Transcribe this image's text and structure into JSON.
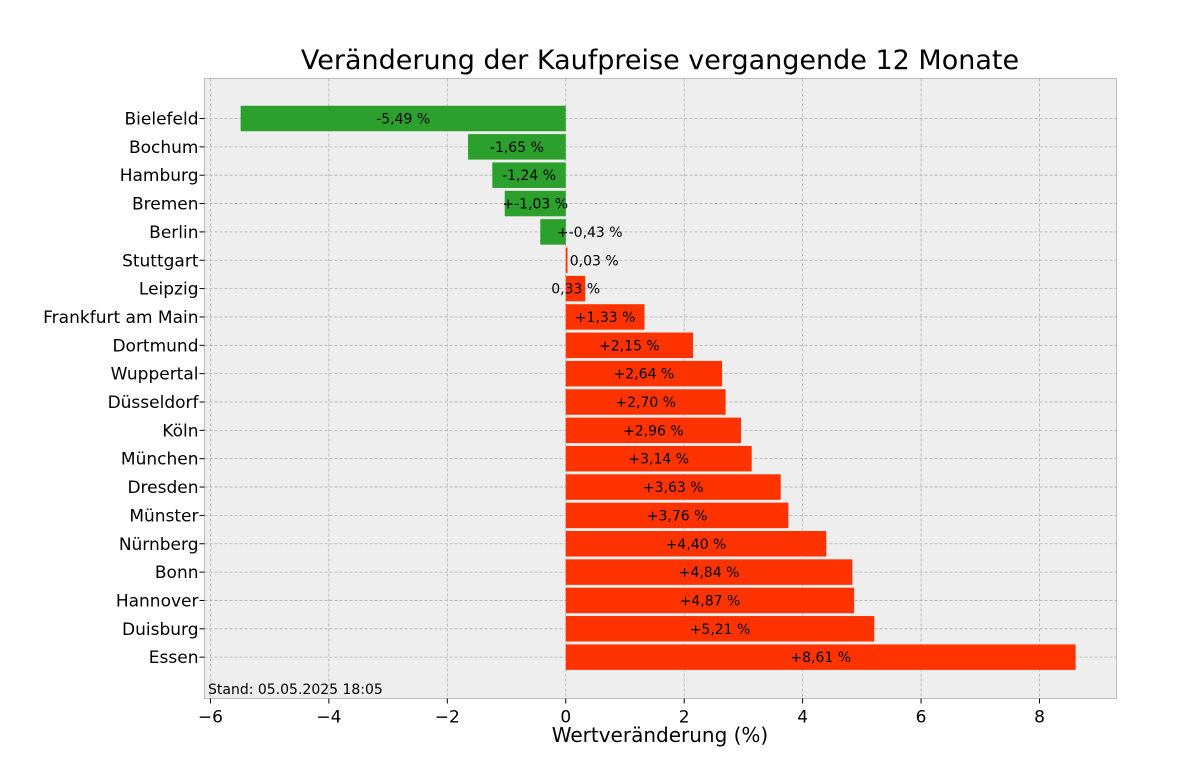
{
  "chart_data": {
    "type": "bar",
    "orientation": "horizontal",
    "title": "Veränderung der Kaufpreise vergangende 12 Monate",
    "xlabel": "Wertveränderung (%)",
    "ylabel": "",
    "xlim": [
      -6.1,
      9.3
    ],
    "xticks": [
      -6,
      -4,
      -2,
      0,
      2,
      4,
      6,
      8
    ],
    "xtick_labels": [
      "−6",
      "−4",
      "−2",
      "0",
      "2",
      "4",
      "6",
      "8"
    ],
    "grid": true,
    "categories": [
      "Bielefeld",
      "Bochum",
      "Hamburg",
      "Bremen",
      "Berlin",
      "Stuttgart",
      "Leipzig",
      "Frankfurt am Main",
      "Dortmund",
      "Wuppertal",
      "Düsseldorf",
      "Köln",
      "München",
      "Dresden",
      "Münster",
      "Nürnberg",
      "Bonn",
      "Hannover",
      "Duisburg",
      "Essen"
    ],
    "values": [
      -5.49,
      -1.65,
      -1.24,
      -1.03,
      -0.43,
      0.03,
      0.33,
      1.33,
      2.15,
      2.64,
      2.7,
      2.96,
      3.14,
      3.63,
      3.76,
      4.4,
      4.84,
      4.87,
      5.21,
      8.61
    ],
    "data_labels": [
      "-5,49 %",
      "-1,65 %",
      "-1,24 %",
      "+-1,03 %",
      "+-0,43 %",
      "0,03 %",
      "0,33 %",
      "+1,33 %",
      "+2,15 %",
      "+2,64 %",
      "+2,70 %",
      "+2,96 %",
      "+3,14 %",
      "+3,63 %",
      "+3,76 %",
      "+4,40 %",
      "+4,84 %",
      "+4,87 %",
      "+5,21 %",
      "+8,61 %"
    ],
    "colors": {
      "negative": "#2ca02c",
      "positive": "#ff3300",
      "plot_background": "#eeeeee"
    },
    "annotation": "Stand: 05.05.2025 18:05"
  }
}
